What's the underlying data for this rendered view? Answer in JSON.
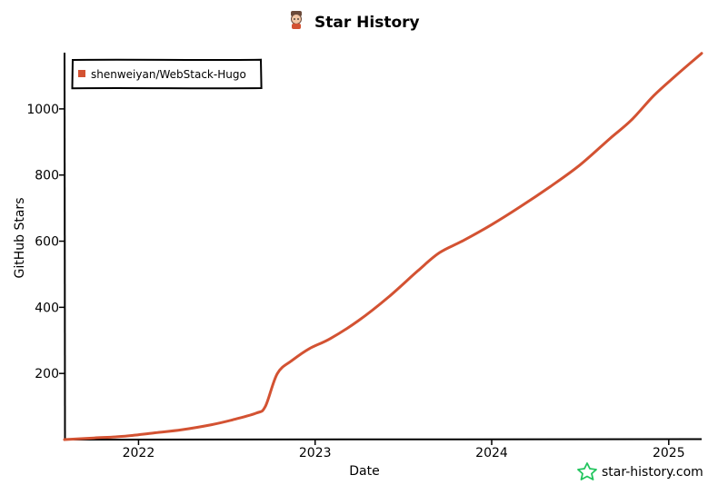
{
  "chart_data": {
    "type": "line",
    "title": "Star History",
    "xlabel": "Date",
    "ylabel": "GitHub Stars",
    "x_ticks": [
      "2022",
      "2023",
      "2024",
      "2025"
    ],
    "y_ticks": [
      200,
      400,
      600,
      800,
      1000
    ],
    "ylim": [
      0,
      1170
    ],
    "xlim": [
      "2021-08-01",
      "2025-03-10"
    ],
    "legend_position": "top-left",
    "series": [
      {
        "name": "shenweiyan/WebStack-Hugo",
        "color": "#d35232",
        "points": [
          [
            "2021-08-01",
            0
          ],
          [
            "2021-10-01",
            5
          ],
          [
            "2021-12-01",
            10
          ],
          [
            "2022-02-01",
            20
          ],
          [
            "2022-04-01",
            30
          ],
          [
            "2022-06-01",
            45
          ],
          [
            "2022-07-15",
            60
          ],
          [
            "2022-09-01",
            80
          ],
          [
            "2022-09-20",
            100
          ],
          [
            "2022-10-15",
            200
          ],
          [
            "2022-11-15",
            240
          ],
          [
            "2022-12-20",
            275
          ],
          [
            "2023-02-01",
            305
          ],
          [
            "2023-04-01",
            360
          ],
          [
            "2023-06-01",
            430
          ],
          [
            "2023-08-01",
            510
          ],
          [
            "2023-09-15",
            565
          ],
          [
            "2023-11-01",
            600
          ],
          [
            "2024-01-01",
            650
          ],
          [
            "2024-03-01",
            705
          ],
          [
            "2024-05-01",
            765
          ],
          [
            "2024-07-01",
            830
          ],
          [
            "2024-09-01",
            910
          ],
          [
            "2024-10-15",
            965
          ],
          [
            "2024-12-01",
            1040
          ],
          [
            "2025-01-15",
            1100
          ],
          [
            "2025-03-10",
            1168
          ]
        ]
      }
    ]
  },
  "footer": {
    "brand": "star-history.com",
    "brand_color": "#22c55e"
  },
  "icons": {
    "title_icon": "star-history-mascot-icon",
    "footer_icon": "star-outline-icon"
  }
}
